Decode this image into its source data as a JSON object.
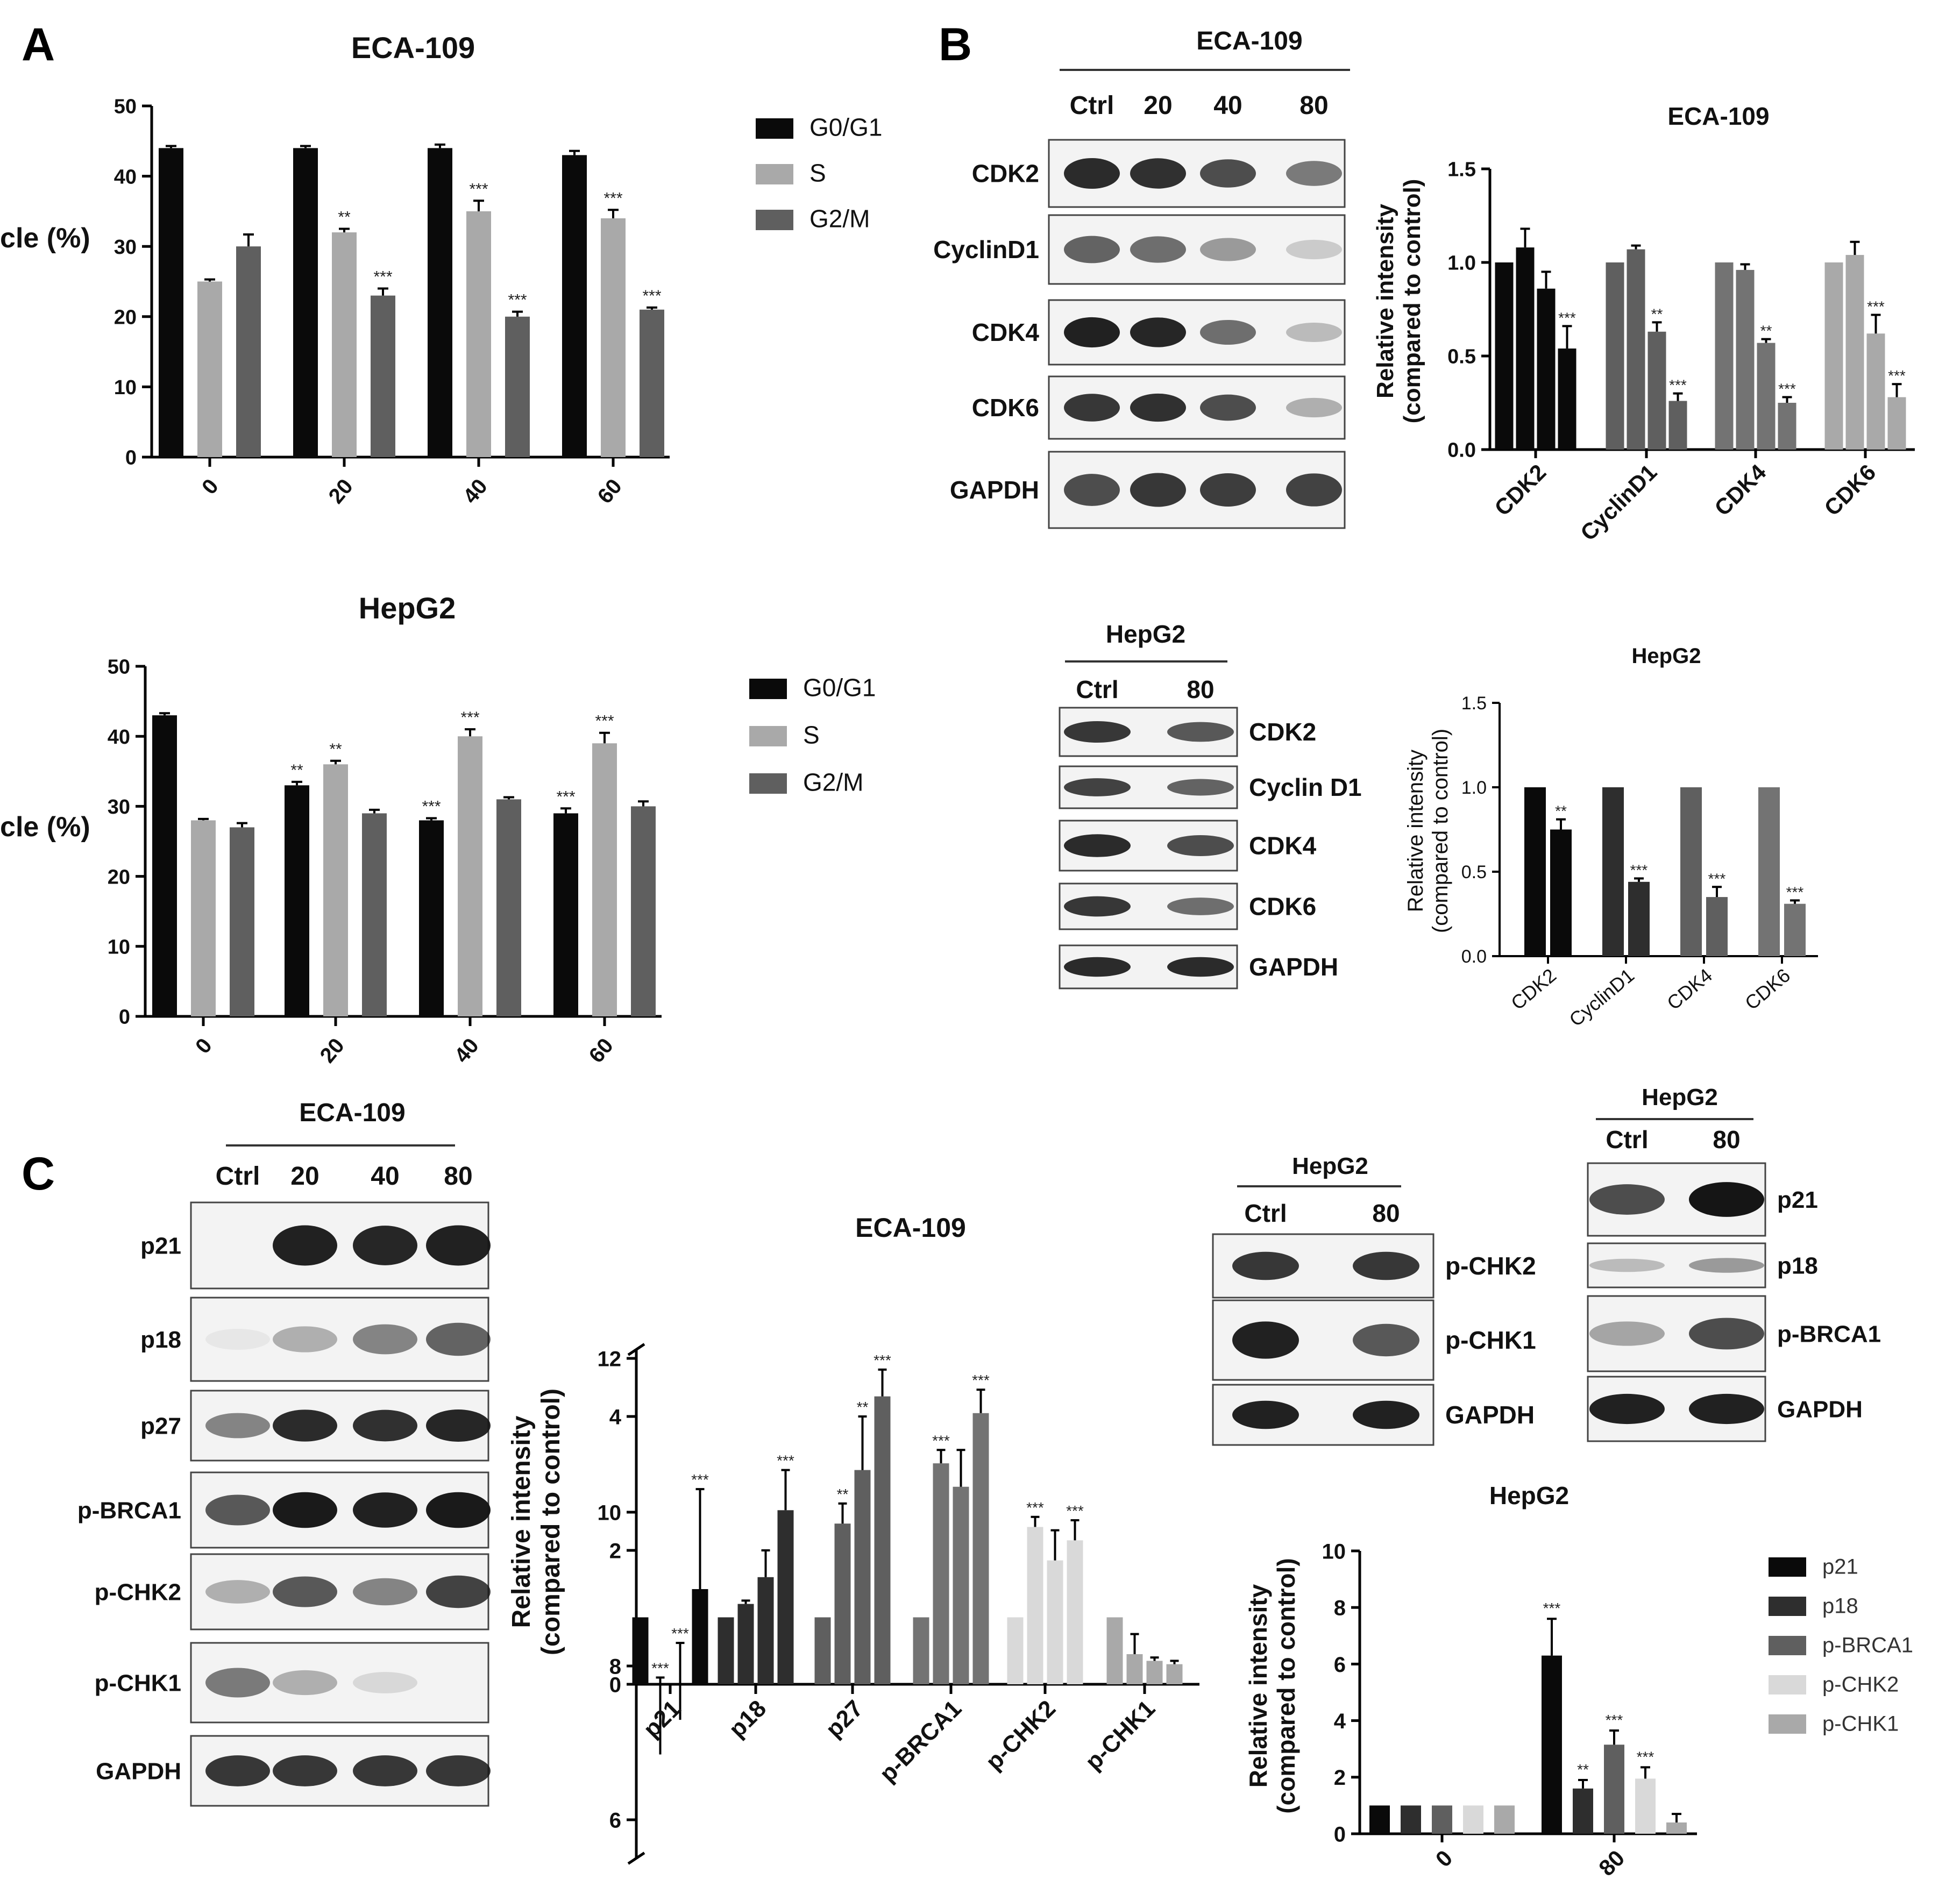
{
  "panel_letters": [
    "A",
    "B",
    "C"
  ],
  "colors": {
    "black": "#0a0a0a",
    "dark": "#2e2e2e",
    "mid": "#5f5f5f",
    "gray": "#737373",
    "light": "#a9a9a9",
    "lighter": "#d9d9d9",
    "blot_bg": "#f3f3f3",
    "band": "#151515"
  },
  "blots": [
    {
      "name": "eca-ab",
      "header": "ECA-109",
      "lanes": [
        "Ctrl",
        "20",
        "40",
        "80"
      ],
      "rows": [
        {
          "label": "CDK2",
          "bands": [
            0.9,
            0.88,
            0.75,
            0.55
          ]
        },
        {
          "label": "CyclinD1",
          "bands": [
            0.65,
            0.6,
            0.4,
            0.18
          ]
        },
        {
          "label": "CDK4",
          "bands": [
            0.95,
            0.92,
            0.6,
            0.25
          ]
        },
        {
          "label": "CDK6",
          "bands": [
            0.85,
            0.88,
            0.75,
            0.3
          ]
        },
        {
          "label": "GAPDH",
          "bands": [
            0.75,
            0.85,
            0.82,
            0.8
          ]
        }
      ]
    },
    {
      "name": "hepg2-b",
      "header": "HepG2",
      "lanes": [
        "Ctrl",
        "80"
      ],
      "rows": [
        {
          "label": "CDK2",
          "bands": [
            0.85,
            0.7
          ]
        },
        {
          "label": "Cyclin D1",
          "bands": [
            0.8,
            0.65
          ]
        },
        {
          "label": "CDK4",
          "bands": [
            0.9,
            0.75
          ]
        },
        {
          "label": "CDK6",
          "bands": [
            0.85,
            0.6
          ]
        },
        {
          "label": "GAPDH",
          "bands": [
            0.9,
            0.9
          ]
        }
      ]
    },
    {
      "name": "eca-c",
      "header": "ECA-109",
      "lanes": [
        "Ctrl",
        "20",
        "40",
        "80"
      ],
      "rows": [
        {
          "label": "p21",
          "bands": [
            0.0,
            0.95,
            0.92,
            0.95
          ]
        },
        {
          "label": "p18",
          "bands": [
            0.05,
            0.3,
            0.5,
            0.65
          ]
        },
        {
          "label": "p27",
          "bands": [
            0.5,
            0.9,
            0.88,
            0.92
          ]
        },
        {
          "label": "p-BRCA1",
          "bands": [
            0.7,
            0.98,
            0.95,
            0.98
          ]
        },
        {
          "label": "p-CHK2",
          "bands": [
            0.3,
            0.7,
            0.5,
            0.8
          ]
        },
        {
          "label": "p-CHK1",
          "bands": [
            0.55,
            0.3,
            0.12,
            0.0
          ]
        },
        {
          "label": "GAPDH",
          "bands": [
            0.85,
            0.85,
            0.85,
            0.85
          ]
        }
      ]
    },
    {
      "name": "hepg2-c1",
      "header": "HepG2",
      "lanes": [
        "Ctrl",
        "80"
      ],
      "rows": [
        {
          "label": "p-CHK2",
          "bands": [
            0.85,
            0.85
          ]
        },
        {
          "label": "p-CHK1",
          "bands": [
            0.95,
            0.7
          ]
        },
        {
          "label": "GAPDH",
          "bands": [
            0.95,
            0.95
          ]
        }
      ]
    },
    {
      "name": "hepg2-c2",
      "header": "HepG2",
      "lanes": [
        "Ctrl",
        "80"
      ],
      "rows": [
        {
          "label": "p21",
          "bands": [
            0.75,
            1.0
          ]
        },
        {
          "label": "p18",
          "bands": [
            0.25,
            0.4
          ]
        },
        {
          "label": "p-BRCA1",
          "bands": [
            0.35,
            0.75
          ]
        },
        {
          "label": "GAPDH",
          "bands": [
            0.95,
            0.95
          ]
        }
      ]
    }
  ],
  "chart_data": [
    {
      "name": "cell-cycle-eca",
      "type": "bar",
      "title": "ECA-109",
      "ylabel": "Cell cycle (%)",
      "xlabel": "",
      "categories": [
        "0",
        "20",
        "40",
        "60"
      ],
      "ylim": [
        0,
        50
      ],
      "yticks": [
        0,
        10,
        20,
        30,
        40,
        50
      ],
      "legend": {
        "position": "right",
        "entries": [
          "G0/G1",
          "S",
          "G2/M"
        ]
      },
      "series": [
        {
          "name": "G0/G1",
          "values": [
            44,
            44,
            44,
            43
          ],
          "errors": [
            0.3,
            0.3,
            0.5,
            0.6
          ],
          "sig": [
            "",
            "",
            "",
            ""
          ]
        },
        {
          "name": "S",
          "values": [
            25,
            32,
            35,
            34
          ],
          "errors": [
            0.3,
            0.5,
            1.5,
            1.2
          ],
          "sig": [
            "",
            "**",
            "***",
            "***"
          ]
        },
        {
          "name": "G2/M",
          "values": [
            30,
            23,
            20,
            21
          ],
          "errors": [
            1.7,
            1.0,
            0.7,
            0.3
          ],
          "sig": [
            "",
            "***",
            "***",
            "***"
          ]
        }
      ]
    },
    {
      "name": "cell-cycle-hepg2",
      "type": "bar",
      "title": "HepG2",
      "ylabel": "Cell cycle (%)",
      "xlabel": "",
      "categories": [
        "0",
        "20",
        "40",
        "60"
      ],
      "ylim": [
        0,
        50
      ],
      "yticks": [
        0,
        10,
        20,
        30,
        40,
        50
      ],
      "legend": {
        "position": "right",
        "entries": [
          "G0/G1",
          "S",
          "G2/M"
        ]
      },
      "series": [
        {
          "name": "G0/G1",
          "values": [
            43,
            33,
            28,
            29
          ],
          "errors": [
            0.3,
            0.5,
            0.3,
            0.7
          ],
          "sig": [
            "",
            "**",
            "***",
            "***"
          ]
        },
        {
          "name": "S",
          "values": [
            28,
            36,
            40,
            39
          ],
          "errors": [
            0.2,
            0.5,
            1.0,
            1.5
          ],
          "sig": [
            "",
            "**",
            "***",
            "***"
          ]
        },
        {
          "name": "G2/M",
          "values": [
            27,
            29,
            31,
            30
          ],
          "errors": [
            0.6,
            0.5,
            0.3,
            0.7
          ],
          "sig": [
            "",
            "",
            "",
            ""
          ]
        }
      ]
    },
    {
      "name": "intensity-eca-b",
      "type": "bar",
      "title": "ECA-109",
      "ylabel": "Relative intensity (compared to control)",
      "xlabel": "",
      "categories": [
        "CDK2",
        "CyclinD1",
        "CDK4",
        "CDK6"
      ],
      "ylim": [
        0,
        1.5
      ],
      "yticks": [
        "0.0",
        "0.5",
        "1.0",
        "1.5"
      ],
      "groups": [
        {
          "values": [
            1.0,
            1.08,
            0.86,
            0.54
          ],
          "errors": [
            0,
            0.1,
            0.09,
            0.12
          ],
          "sig": [
            "",
            "",
            "",
            "***"
          ]
        },
        {
          "values": [
            1.0,
            1.07,
            0.63,
            0.26
          ],
          "errors": [
            0,
            0.02,
            0.05,
            0.04
          ],
          "sig": [
            "",
            "",
            "**",
            "***"
          ]
        },
        {
          "values": [
            1.0,
            0.96,
            0.57,
            0.25
          ],
          "errors": [
            0,
            0.03,
            0.02,
            0.03
          ],
          "sig": [
            "",
            "",
            "**",
            "***"
          ]
        },
        {
          "values": [
            1.0,
            1.04,
            0.62,
            0.28
          ],
          "errors": [
            0,
            0.07,
            0.1,
            0.07
          ],
          "sig": [
            "",
            "",
            "***",
            "***"
          ]
        }
      ]
    },
    {
      "name": "intensity-hepg2-b",
      "type": "bar",
      "title": "HepG2",
      "ylabel": "Relative intensity (compared to control)",
      "xlabel": "",
      "categories": [
        "CDK2",
        "CyclinD1",
        "CDK4",
        "CDK6"
      ],
      "ylim": [
        0,
        1.5
      ],
      "yticks": [
        "0.0",
        "0.5",
        "1.0",
        "1.5"
      ],
      "groups": [
        {
          "values": [
            1.0,
            0.75
          ],
          "errors": [
            0,
            0.06
          ],
          "sig": [
            "",
            "**"
          ]
        },
        {
          "values": [
            1.0,
            0.44
          ],
          "errors": [
            0,
            0.02
          ],
          "sig": [
            "",
            "***"
          ]
        },
        {
          "values": [
            1.0,
            0.35
          ],
          "errors": [
            0,
            0.06
          ],
          "sig": [
            "",
            "***"
          ]
        },
        {
          "values": [
            1.0,
            0.31
          ],
          "errors": [
            0,
            0.02
          ],
          "sig": [
            "",
            "***"
          ]
        }
      ]
    },
    {
      "name": "intensity-eca-c",
      "type": "bar",
      "title": "ECA-109",
      "ylabel": "Relative intensity (compared to control)",
      "xlabel": "",
      "categories": [
        "p21",
        "p18",
        "p27",
        "p-BRCA1",
        "p-CHK2",
        "p-CHK1"
      ],
      "ylim": [
        0,
        12
      ],
      "axis_break": [
        5,
        5.5
      ],
      "yticks": [
        "0",
        "2",
        "4",
        "6",
        "8",
        "10",
        "12"
      ],
      "groups": [
        {
          "values": [
            1.0,
            6.85,
            7.3,
            9.0
          ],
          "errors": [
            0,
            1.0,
            1.0,
            1.3
          ],
          "sig": [
            "",
            "***",
            "***",
            "***"
          ]
        },
        {
          "values": [
            1.0,
            1.2,
            1.6,
            2.6
          ],
          "errors": [
            0,
            0.05,
            0.4,
            0.6
          ],
          "sig": [
            "",
            "",
            "",
            "***"
          ]
        },
        {
          "values": [
            1.0,
            2.4,
            3.2,
            4.3
          ],
          "errors": [
            0,
            0.3,
            0.8,
            0.4
          ],
          "sig": [
            "",
            "**",
            "**",
            "***"
          ]
        },
        {
          "values": [
            1.0,
            3.3,
            2.95,
            4.05
          ],
          "errors": [
            0,
            0.2,
            0.55,
            0.35
          ],
          "sig": [
            "",
            "***",
            "",
            "***"
          ]
        },
        {
          "values": [
            1.0,
            2.35,
            1.85,
            2.15
          ],
          "errors": [
            0,
            0.15,
            0.45,
            0.3
          ],
          "sig": [
            "",
            "***",
            "",
            "***"
          ]
        },
        {
          "values": [
            1.0,
            0.45,
            0.35,
            0.3
          ],
          "errors": [
            0,
            0.3,
            0.05,
            0.05
          ],
          "sig": [
            "",
            "",
            "",
            ""
          ]
        }
      ]
    },
    {
      "name": "intensity-hepg2-c",
      "type": "bar",
      "title": "HepG2",
      "ylabel": "Relative intensity (compared to control)",
      "xlabel": "",
      "categories": [
        "0",
        "80"
      ],
      "ylim": [
        0,
        10
      ],
      "yticks": [
        "0",
        "2",
        "4",
        "6",
        "8",
        "10"
      ],
      "legend": {
        "position": "right",
        "entries": [
          "p21",
          "p18",
          "p-BRCA1",
          "p-CHK2",
          "p-CHK1"
        ]
      },
      "series": [
        {
          "name": "p21",
          "values": [
            1.0,
            6.3
          ],
          "errors": [
            0,
            1.3
          ],
          "sig": [
            "",
            "***"
          ]
        },
        {
          "name": "p18",
          "values": [
            1.0,
            1.6
          ],
          "errors": [
            0,
            0.3
          ],
          "sig": [
            "",
            "**"
          ]
        },
        {
          "name": "p-BRCA1",
          "values": [
            1.0,
            3.15
          ],
          "errors": [
            0,
            0.5
          ],
          "sig": [
            "",
            "***"
          ]
        },
        {
          "name": "p-CHK2",
          "values": [
            1.0,
            1.95
          ],
          "errors": [
            0,
            0.4
          ],
          "sig": [
            "",
            "***"
          ]
        },
        {
          "name": "p-CHK1",
          "values": [
            1.0,
            0.4
          ],
          "errors": [
            0,
            0.3
          ],
          "sig": [
            "",
            ""
          ]
        }
      ]
    }
  ]
}
